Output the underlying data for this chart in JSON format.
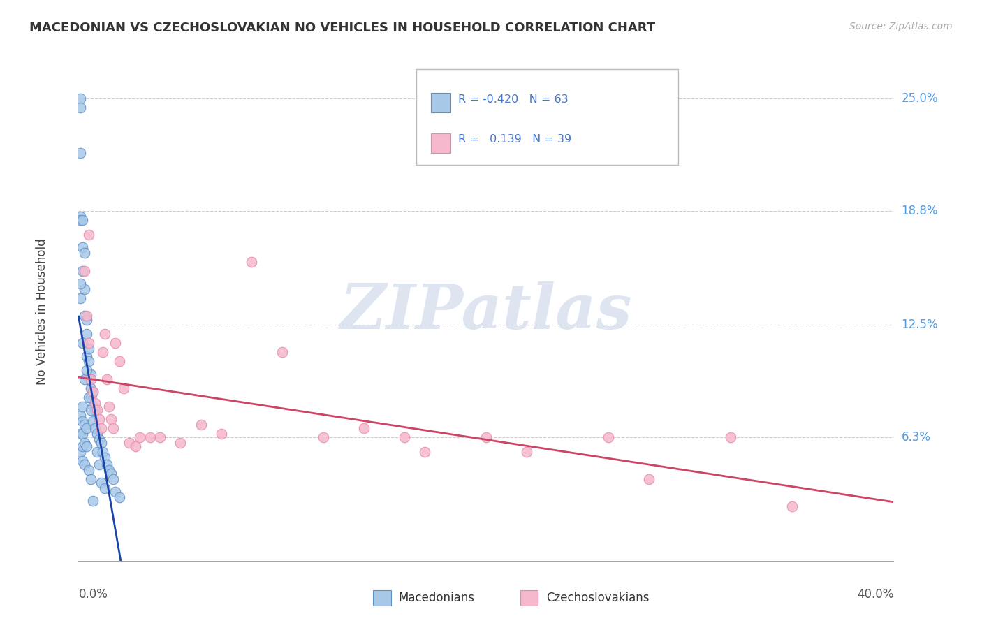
{
  "title": "MACEDONIAN VS CZECHOSLOVAKIAN NO VEHICLES IN HOUSEHOLD CORRELATION CHART",
  "source": "Source: ZipAtlas.com",
  "ylabel": "No Vehicles in Household",
  "ytick_labels": [
    "6.3%",
    "12.5%",
    "18.8%",
    "25.0%"
  ],
  "ytick_values": [
    0.063,
    0.125,
    0.188,
    0.25
  ],
  "xlim": [
    0.0,
    0.4
  ],
  "ylim": [
    -0.005,
    0.27
  ],
  "blue_label": "Macedonians",
  "pink_label": "Czechoslovakians",
  "blue_R": -0.42,
  "blue_N": 63,
  "pink_R": 0.139,
  "pink_N": 39,
  "blue_color": "#a8c8e8",
  "pink_color": "#f5b8cc",
  "blue_edge": "#6090c8",
  "pink_edge": "#e888a8",
  "trend_blue": "#1a44aa",
  "trend_pink": "#cc4466",
  "watermark_color": "#c8d4e8",
  "blue_x": [
    0.001,
    0.001,
    0.001,
    0.001,
    0.001,
    0.001,
    0.001,
    0.001,
    0.002,
    0.002,
    0.002,
    0.002,
    0.002,
    0.002,
    0.002,
    0.003,
    0.003,
    0.003,
    0.003,
    0.003,
    0.003,
    0.004,
    0.004,
    0.004,
    0.004,
    0.004,
    0.005,
    0.005,
    0.005,
    0.005,
    0.006,
    0.006,
    0.006,
    0.006,
    0.007,
    0.007,
    0.007,
    0.008,
    0.008,
    0.009,
    0.009,
    0.01,
    0.01,
    0.011,
    0.011,
    0.012,
    0.013,
    0.013,
    0.014,
    0.015,
    0.016,
    0.017,
    0.018,
    0.001,
    0.001,
    0.002,
    0.002,
    0.003,
    0.004,
    0.005,
    0.006,
    0.007,
    0.02
  ],
  "blue_y": [
    0.25,
    0.245,
    0.22,
    0.185,
    0.183,
    0.075,
    0.065,
    0.055,
    0.183,
    0.168,
    0.08,
    0.072,
    0.065,
    0.058,
    0.05,
    0.165,
    0.145,
    0.13,
    0.07,
    0.06,
    0.048,
    0.128,
    0.12,
    0.108,
    0.068,
    0.058,
    0.112,
    0.105,
    0.095,
    0.045,
    0.098,
    0.09,
    0.085,
    0.04,
    0.088,
    0.08,
    0.072,
    0.078,
    0.068,
    0.065,
    0.055,
    0.062,
    0.048,
    0.06,
    0.038,
    0.055,
    0.052,
    0.035,
    0.048,
    0.045,
    0.043,
    0.04,
    0.033,
    0.148,
    0.14,
    0.155,
    0.115,
    0.095,
    0.1,
    0.085,
    0.078,
    0.028,
    0.03
  ],
  "pink_x": [
    0.003,
    0.004,
    0.005,
    0.006,
    0.007,
    0.008,
    0.009,
    0.01,
    0.011,
    0.012,
    0.013,
    0.014,
    0.015,
    0.016,
    0.017,
    0.018,
    0.02,
    0.022,
    0.025,
    0.028,
    0.03,
    0.035,
    0.04,
    0.05,
    0.06,
    0.07,
    0.085,
    0.1,
    0.12,
    0.14,
    0.16,
    0.17,
    0.2,
    0.22,
    0.26,
    0.28,
    0.32,
    0.35,
    0.005
  ],
  "pink_y": [
    0.155,
    0.13,
    0.115,
    0.095,
    0.088,
    0.082,
    0.078,
    0.073,
    0.068,
    0.11,
    0.12,
    0.095,
    0.08,
    0.073,
    0.068,
    0.115,
    0.105,
    0.09,
    0.06,
    0.058,
    0.063,
    0.063,
    0.063,
    0.06,
    0.07,
    0.065,
    0.16,
    0.11,
    0.063,
    0.068,
    0.063,
    0.055,
    0.063,
    0.055,
    0.063,
    0.04,
    0.063,
    0.025,
    0.175
  ]
}
